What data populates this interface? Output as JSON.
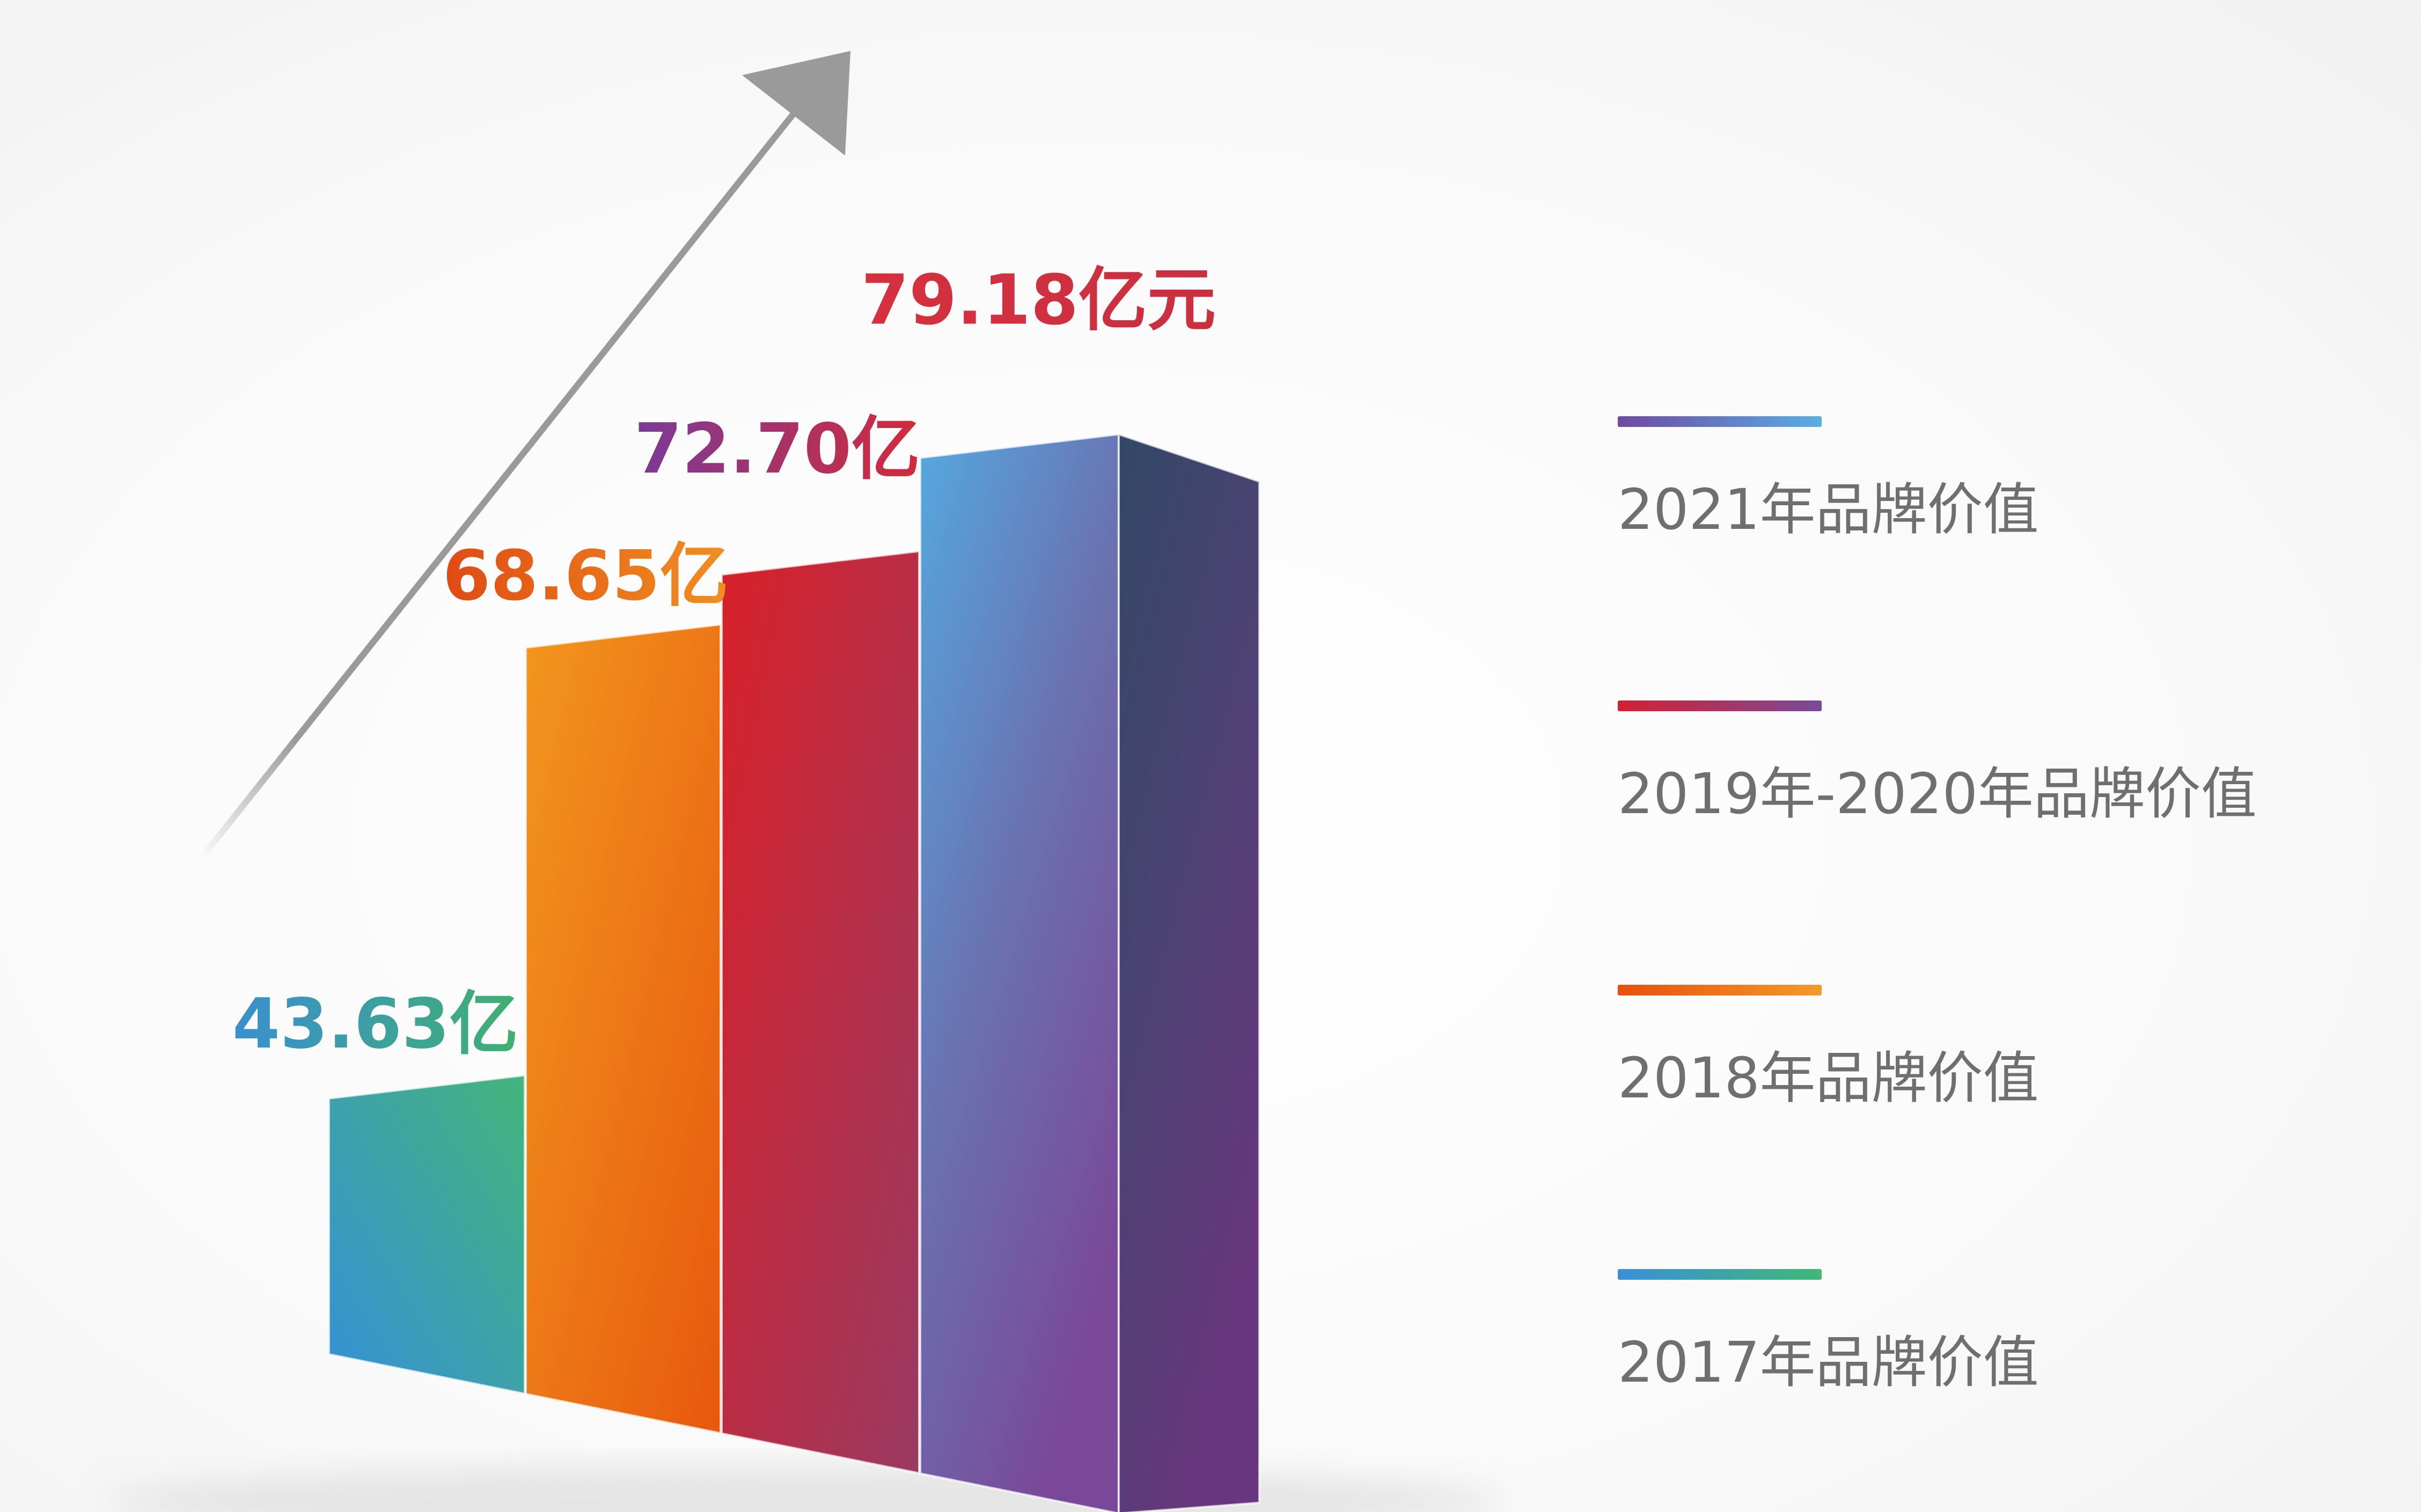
{
  "chart_data": {
    "type": "bar",
    "categories": [
      "2017年品牌价值",
      "2018年品牌价值",
      "2019年-2020年品牌价值",
      "2021年品牌价值"
    ],
    "values": [
      43.63,
      68.65,
      72.7,
      79.18
    ],
    "data_labels": [
      "43.63亿",
      "68.65亿",
      "72.70亿",
      "79.18亿元"
    ],
    "unit": "亿元",
    "trend_arrow": true,
    "legend": [
      {
        "label": "2021年品牌价值",
        "colors": [
          "#6d4aa0",
          "#5aaae0"
        ]
      },
      {
        "label": "2019年-2020年品牌价值",
        "colors": [
          "#d42030",
          "#7a4a9a"
        ]
      },
      {
        "label": "2018年品牌价值",
        "colors": [
          "#e8500e",
          "#f39a2a"
        ]
      },
      {
        "label": "2017年品牌价值",
        "colors": [
          "#3a90d8",
          "#3fb878"
        ]
      }
    ],
    "legend_placement": "right",
    "grid": false,
    "axes_visible": false
  },
  "colors": {
    "bar_2017": [
      "#3a90d8",
      "#43b67a"
    ],
    "bar_2018": [
      "#ee9020",
      "#e85a10"
    ],
    "bar_2019_2020": [
      "#d42030",
      "#9a3860"
    ],
    "bar_2021": [
      "#55a8e0",
      "#7a4898"
    ],
    "arrow": "#9a9a9a",
    "legend_text": "#6f6f6f"
  }
}
